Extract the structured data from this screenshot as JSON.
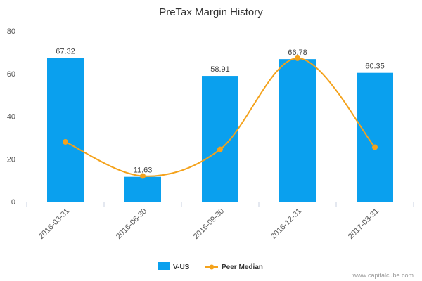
{
  "chart_data": {
    "type": "bar",
    "title": "PreTax Margin History",
    "categories": [
      "2016-03-31",
      "2016-06-30",
      "2016-09-30",
      "2016-12-31",
      "2017-03-31"
    ],
    "ylim": [
      0,
      80
    ],
    "yticks": [
      0,
      20,
      40,
      60,
      80
    ],
    "grid": false,
    "legend_position": "bottom-center",
    "series": [
      {
        "name": "V-US",
        "type": "bar",
        "color": "#0aa0ee",
        "values": [
          67.32,
          11.63,
          58.91,
          66.78,
          60.35
        ],
        "labels": [
          "67.32",
          "11.63",
          "58.91",
          "66.78",
          "60.35"
        ]
      },
      {
        "name": "Peer Median",
        "type": "line",
        "smooth": true,
        "color": "#f4a21b",
        "values": [
          28,
          12,
          24.5,
          67.2,
          25.5
        ]
      }
    ]
  },
  "credit": "www.capitalcube.com"
}
